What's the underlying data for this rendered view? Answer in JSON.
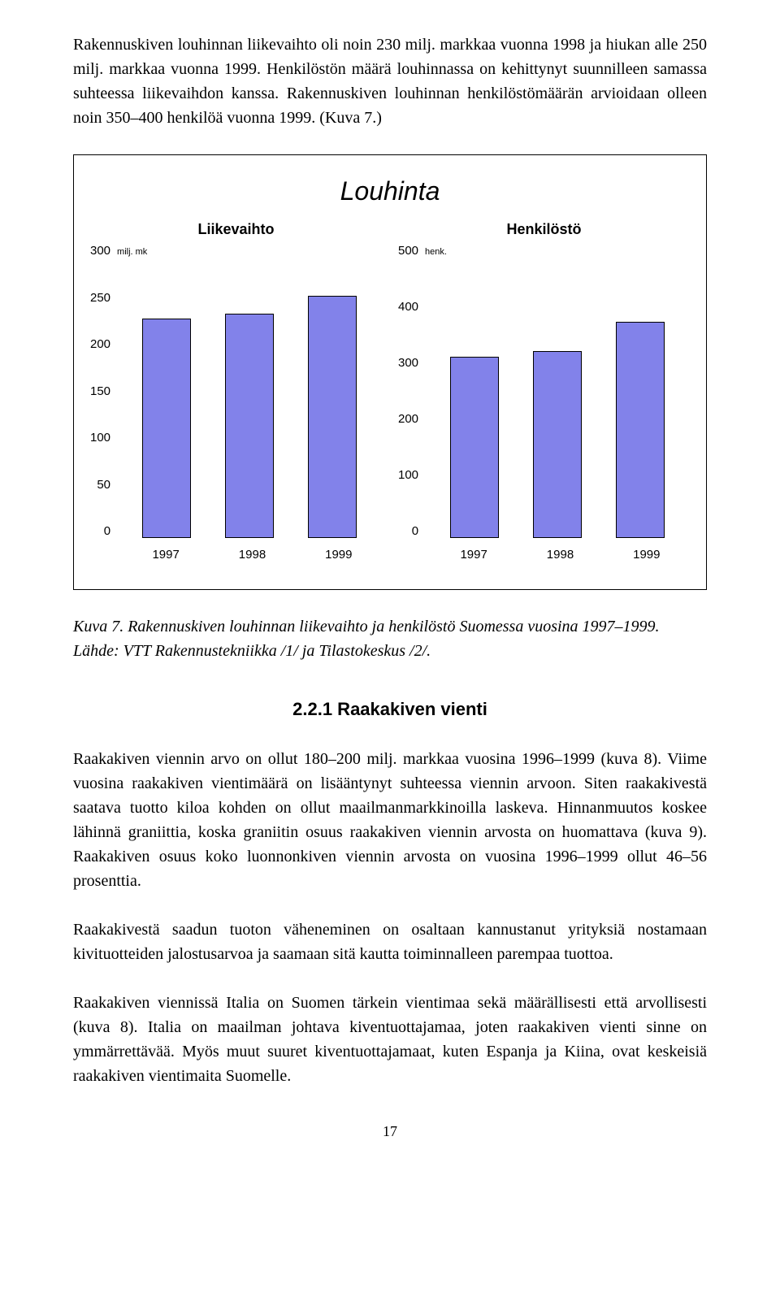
{
  "paragraphs": {
    "p1": "Rakennuskiven louhinnan liikevaihto oli noin 230 milj. markkaa vuonna 1998 ja hiukan alle 250 milj. markkaa vuonna 1999. Henkilöstön määrä louhinnassa on kehittynyt suunnilleen samassa suhteessa liikevaihdon kanssa. Rakennuskiven louhinnan henkilös­tömäärän arvioidaan olleen noin 350–400 henkilöä vuonna 1999. (Kuva 7.)",
    "caption": "Kuva 7. Rakennuskiven louhinnan liikevaihto ja henkilöstö Suomessa vuosina 1997–1999. Lähde: VTT Rakennustekniikka /1/ ja Tilastokeskus /2/.",
    "heading": "2.2.1  Raakakiven vienti",
    "p2": "Raakakiven viennin arvo on ollut 180–200 milj. markkaa vuosina 1996–1999 (kuva 8). Viime vuosina raakakiven vientimäärä on lisääntynyt suhteessa viennin arvoon. Siten raakakivestä saatava tuotto kiloa kohden on ollut maailmanmarkkinoilla laskeva. Hin­nanmuutos koskee lähinnä graniittia, koska graniitin osuus raakakiven viennin arvosta on huomattava (kuva 9). Raakakiven osuus koko luonnonkiven viennin arvosta on vuo­sina 1996–1999 ollut 46–56 prosenttia.",
    "p3": "Raakakivestä saadun tuoton väheneminen on osaltaan kannustanut yrityksiä nostamaan kivituotteiden jalostusarvoa ja saamaan sitä kautta toiminnalleen parempaa tuottoa.",
    "p4": "Raakakiven viennissä Italia on Suomen tärkein vientimaa sekä määrällisesti että arvolli­sesti (kuva 8). Italia on maailman johtava kiventuottajamaa, joten raakakiven vienti sin­ne on ymmärrettävää. Myös muut suuret kiventuottajamaat, kuten Espanja ja Kiina, ovat keskeisiä raakakiven vientimaita Suomelle."
  },
  "chart": {
    "title": "Louhinta",
    "bar_color": "#8282ea",
    "bar_border": "#000000",
    "background": "#ffffff",
    "left": {
      "title": "Liikevaihto",
      "unit": "milj. mk",
      "ymax": 300,
      "yticks": [
        "300",
        "250",
        "200",
        "150",
        "100",
        "50",
        "0"
      ],
      "categories": [
        "1997",
        "1998",
        "1999"
      ],
      "values": [
        225,
        230,
        248
      ]
    },
    "right": {
      "title": "Henkilöstö",
      "unit": "henk.",
      "ymax": 500,
      "yticks": [
        "500",
        "400",
        "300",
        "200",
        "100",
        "0"
      ],
      "categories": [
        "1997",
        "1998",
        "1999"
      ],
      "values": [
        310,
        320,
        370
      ]
    }
  },
  "page_number": "17"
}
